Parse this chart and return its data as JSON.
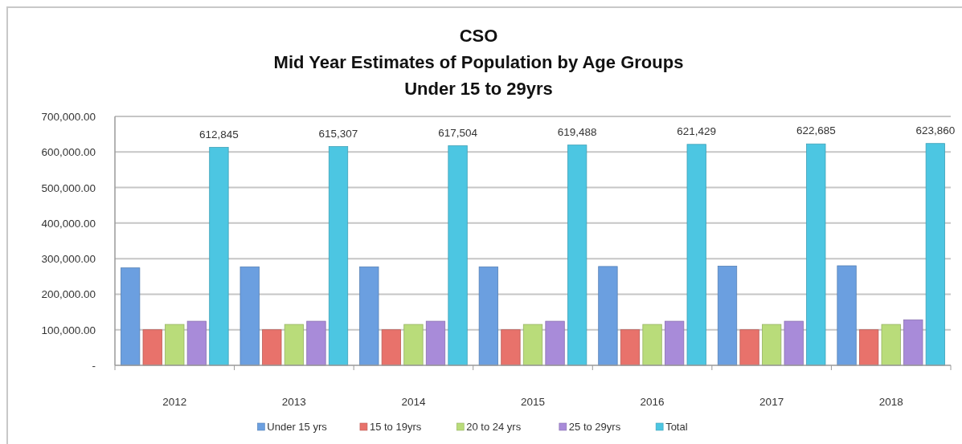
{
  "chart_data": {
    "type": "bar",
    "title": "CSO\nMid Year Estimates of Population by Age Groups\nUnder 15 to 29yrs",
    "categories": [
      "2012",
      "2013",
      "2014",
      "2015",
      "2016",
      "2017",
      "2018"
    ],
    "series": [
      {
        "name": "Under 15 yrs",
        "color": "#6b9fe0",
        "values": [
          274000,
          277000,
          277000,
          277000,
          278000,
          279000,
          280000
        ]
      },
      {
        "name": "15 to 19yrs",
        "color": "#e8726b",
        "values": [
          100000,
          100000,
          100000,
          100000,
          100000,
          100000,
          100000
        ]
      },
      {
        "name": "20 to 24 yrs",
        "color": "#b9dc7a",
        "values": [
          115000,
          115000,
          115000,
          115000,
          115000,
          115000,
          115000
        ]
      },
      {
        "name": "25 to 29yrs",
        "color": "#a88bd9",
        "values": [
          124000,
          124000,
          124000,
          124000,
          124000,
          124000,
          128000
        ]
      },
      {
        "name": "Total",
        "color": "#4cc6e2",
        "values": [
          612845,
          615307,
          617504,
          619488,
          621429,
          622685,
          623860
        ],
        "value_labels": [
          "612,845",
          "615,307",
          "617,504",
          "619,488",
          "621,429",
          "622,685",
          "623,860"
        ]
      }
    ],
    "ylim": [
      0,
      700000
    ],
    "yticks": [
      {
        "value": 0,
        "label": "-"
      },
      {
        "value": 100000,
        "label": "100,000.00"
      },
      {
        "value": 200000,
        "label": "200,000.00"
      },
      {
        "value": 300000,
        "label": "300,000.00"
      },
      {
        "value": 400000,
        "label": "400,000.00"
      },
      {
        "value": 500000,
        "label": "500,000.00"
      },
      {
        "value": 600000,
        "label": "600,000.00"
      },
      {
        "value": 700000,
        "label": "700,000.00"
      }
    ],
    "grid": "y",
    "legend": "bottom"
  }
}
